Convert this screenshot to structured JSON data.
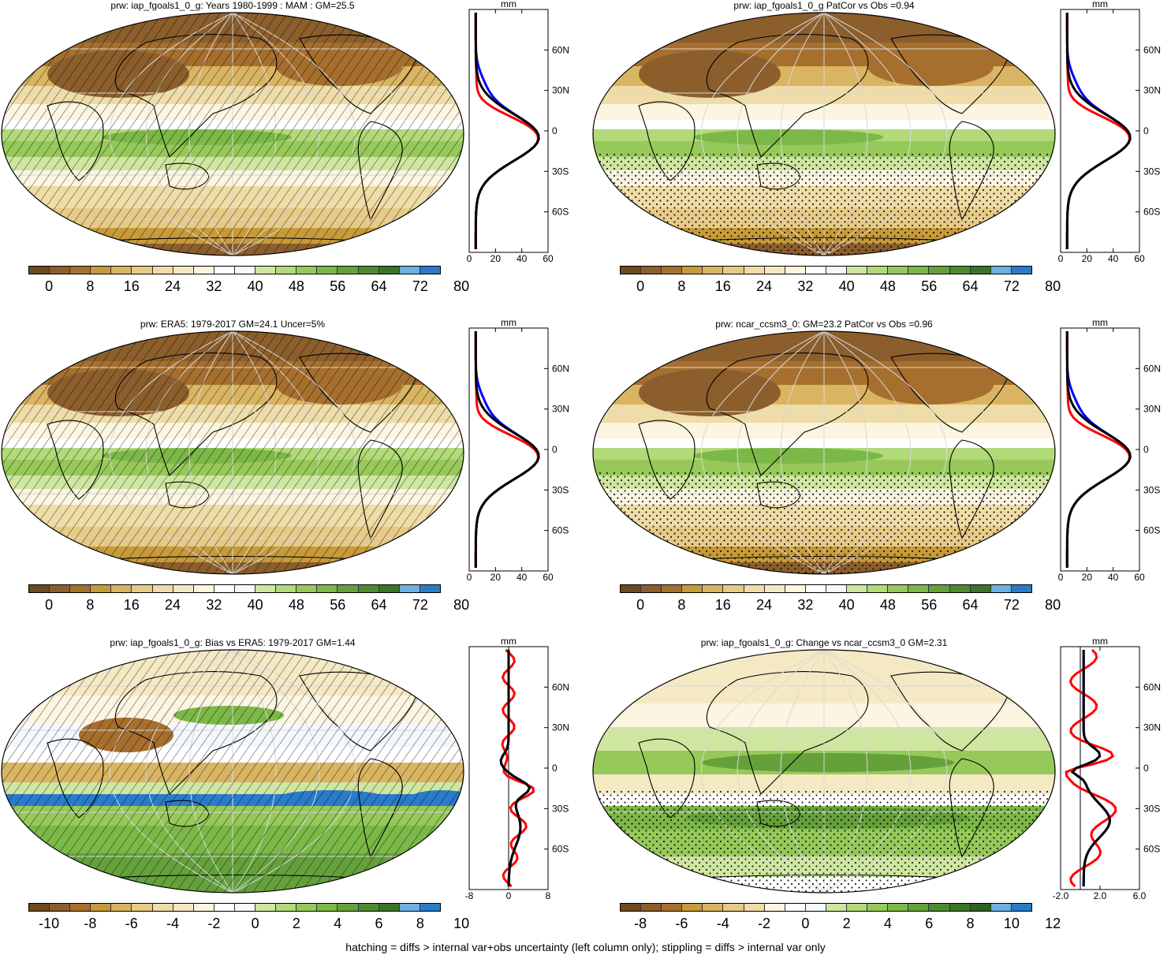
{
  "colors": {
    "precip_scale": [
      "#6e4a1e",
      "#8b5e2c",
      "#a66f2e",
      "#c79a3a",
      "#d9b462",
      "#e6ca86",
      "#efdca6",
      "#f5e9c4",
      "#fbf5e1",
      "#ffffff",
      "#f4f8fc",
      "#cfe6a0",
      "#b2d97a",
      "#96c95a",
      "#7cb847",
      "#64a13b",
      "#4c8a31",
      "#3a7428",
      "#6bb0e0",
      "#2a7bc9"
    ],
    "bias_scale": [
      "#6e4a1e",
      "#8b5e2c",
      "#a66f2e",
      "#c79a3a",
      "#d9b462",
      "#e6ca86",
      "#efdca6",
      "#f5e9c4",
      "#fbf5e1",
      "#ffffff",
      "#f4f8fc",
      "#cfe6a0",
      "#b2d97a",
      "#96c95a",
      "#7cb847",
      "#64a13b",
      "#4c8a31",
      "#3a7428",
      "#6bb0e0",
      "#2a7bc9"
    ],
    "change_scale": [
      "#6e4a1e",
      "#8b5e2c",
      "#a66f2e",
      "#c79a3a",
      "#d9b462",
      "#e6ca86",
      "#efdca6",
      "#fbf5e1",
      "#ffffff",
      "#f4f8fc",
      "#cfe6a0",
      "#b2d97a",
      "#96c95a",
      "#7cb847",
      "#64a13b",
      "#4c8a31",
      "#3a7428",
      "#2f6121",
      "#6bb0e0",
      "#2a7bc9"
    ],
    "profile_model": "#ff0000",
    "profile_obs": "#0000ff",
    "profile_mean": "#000000"
  },
  "panels": [
    {
      "title": "prw: iap_fgoals1_0_g: Years 1980-1999 : MAM : GM=25.5",
      "cbar_labels": [
        "0",
        "8",
        "16",
        "24",
        "32",
        "40",
        "48",
        "56",
        "64",
        "72",
        "80"
      ],
      "profile": {
        "unit": "mm",
        "xticks": [
          "0",
          "20",
          "40",
          "60"
        ],
        "yticks": [
          "60N",
          "30N",
          "0",
          "30S",
          "60S"
        ]
      },
      "overlay": "hatch"
    },
    {
      "title": "prw: iap_fgoals1_0_g PatCor vs Obs =0.94",
      "cbar_labels": [
        "0",
        "8",
        "16",
        "24",
        "32",
        "40",
        "48",
        "56",
        "64",
        "72",
        "80"
      ],
      "profile": {
        "unit": "mm",
        "xticks": [
          "0",
          "20",
          "40",
          "60"
        ],
        "yticks": [
          "60N",
          "30N",
          "0",
          "30S",
          "60S"
        ]
      },
      "overlay": "stipple"
    },
    {
      "title": "prw: ERA5: 1979-2017 GM=24.1 Uncer=5%",
      "cbar_labels": [
        "0",
        "8",
        "16",
        "24",
        "32",
        "40",
        "48",
        "56",
        "64",
        "72",
        "80"
      ],
      "profile": {
        "unit": "mm",
        "xticks": [
          "0",
          "20",
          "40",
          "60"
        ],
        "yticks": [
          "60N",
          "30N",
          "0",
          "30S",
          "60S"
        ]
      },
      "overlay": "hatch"
    },
    {
      "title": "prw: ncar_ccsm3_0: GM=23.2 PatCor vs Obs =0.96",
      "cbar_labels": [
        "0",
        "8",
        "16",
        "24",
        "32",
        "40",
        "48",
        "56",
        "64",
        "72",
        "80"
      ],
      "profile": {
        "unit": "mm",
        "xticks": [
          "0",
          "20",
          "40",
          "60"
        ],
        "yticks": [
          "60N",
          "30N",
          "0",
          "30S",
          "60S"
        ]
      },
      "overlay": "stipple"
    },
    {
      "title": "prw: iap_fgoals1_0_g: Bias vs ERA5: 1979-2017 GM=1.44",
      "cbar_labels": [
        "-10",
        "-8",
        "-6",
        "-4",
        "-2",
        "0",
        "2",
        "4",
        "6",
        "8",
        "10"
      ],
      "profile": {
        "unit": "mm",
        "xticks": [
          "-8",
          "0",
          "8"
        ],
        "yticks": [
          "60N",
          "30N",
          "0",
          "30S",
          "60S"
        ]
      },
      "overlay": "hatch"
    },
    {
      "title": "prw: iap_fgoals1_0_g: Change vs ncar_ccsm3_0 GM=2.31",
      "cbar_labels": [
        "-8",
        "-6",
        "-4",
        "-2",
        "0",
        "2",
        "4",
        "6",
        "8",
        "10",
        "12"
      ],
      "profile": {
        "unit": "mm",
        "xticks": [
          "-2.0",
          "2.0",
          "6.0"
        ],
        "yticks": [
          "60N",
          "30N",
          "0",
          "30S",
          "60S"
        ]
      },
      "overlay": "stipple"
    }
  ],
  "footer": "hatching = diffs > internal var+obs uncertainty (left column only); stippling = diffs > internal var only"
}
